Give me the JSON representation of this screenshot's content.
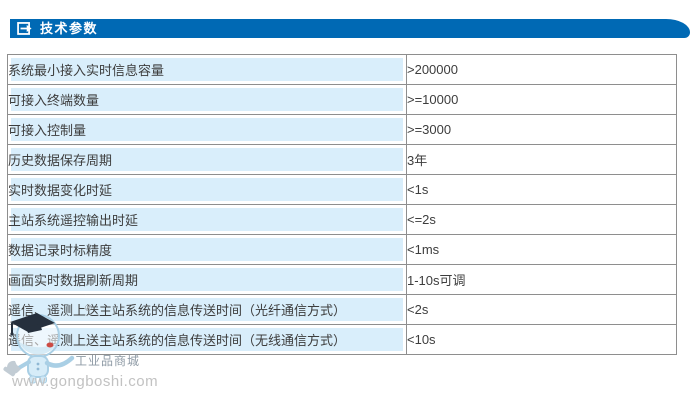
{
  "header": {
    "title": "技术参数",
    "icon": "arrow-box-icon",
    "bar_color": "#0069b4",
    "text_color": "#ffffff"
  },
  "table": {
    "border_color": "#8e8e8e",
    "param_cell_bg": "#d9eefb",
    "value_cell_bg": "#ffffff",
    "rows": [
      {
        "param": "系统最小接入实时信息容量",
        "value": ">200000"
      },
      {
        "param": "可接入终端数量",
        "value": ">=10000"
      },
      {
        "param": "可接入控制量",
        "value": ">=3000"
      },
      {
        "param": "历史数据保存周期",
        "value": "3年"
      },
      {
        "param": "实时数据变化时延",
        "value": "<1s"
      },
      {
        "param": "主站系统遥控输出时延",
        "value": "<=2s"
      },
      {
        "param": "数据记录时标精度",
        "value": "<1ms"
      },
      {
        "param": "画面实时数据刷新周期",
        "value": "1-10s可调"
      },
      {
        "param": "遥信、遥测上送主站系统的信息传送时间（光纤通信方式）",
        "value": "<2s"
      },
      {
        "param": "遥信、遥测上送主站系统的信息传送时间（无线通信方式）",
        "value": "<10s"
      }
    ]
  },
  "watermark": {
    "registered_mark": "®",
    "brand": "工业品商城",
    "url": "www.gongboshi.com",
    "mascot_icon": "mascot-robot-icon"
  }
}
